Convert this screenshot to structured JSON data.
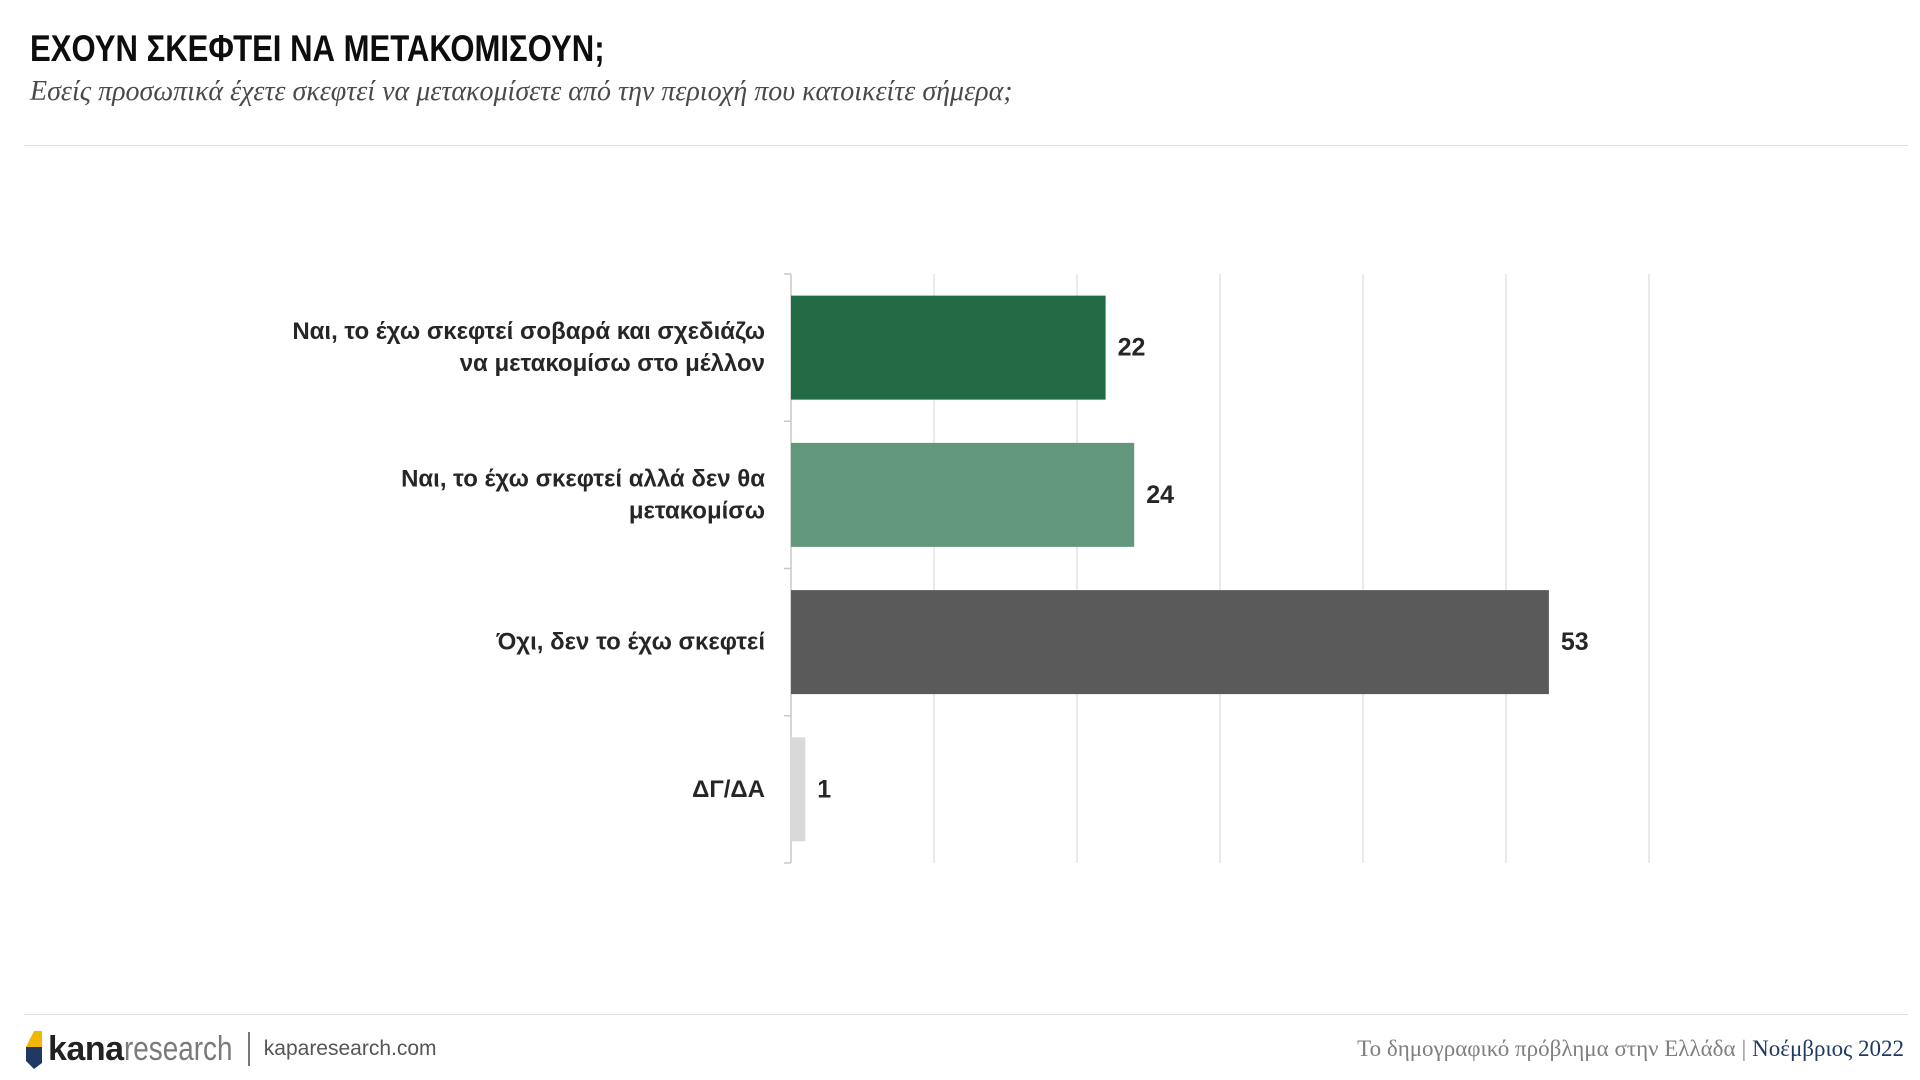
{
  "header": {
    "title": "ΕΧΟΥΝ ΣΚΕΦΤΕΙ ΝΑ ΜΕΤΑΚΟΜΙΣΟΥΝ;",
    "subtitle": "Εσείς προσωπικά έχετε σκεφτεί να μετακομίσετε από την περιοχή που κατοικείτε σήμερα;"
  },
  "chart_data": {
    "type": "bar",
    "orientation": "horizontal",
    "title": "ΕΧΟΥΝ ΣΚΕΦΤΕΙ ΝΑ ΜΕΤΑΚΟΜΙΣΟΥΝ;",
    "xlabel": "",
    "ylabel": "",
    "xlim": [
      0,
      60
    ],
    "grid": true,
    "categories": [
      [
        "Ναι, το έχω σκεφτεί σοβαρά και σχεδιάζω",
        "να μετακομίσω στο μέλλον"
      ],
      [
        "Ναι, το έχω σκεφτεί αλλά δεν θα",
        "μετακομίσω"
      ],
      [
        "Όχι, δεν το έχω σκεφτεί"
      ],
      [
        "ΔΓ/ΔΑ"
      ]
    ],
    "values": [
      22,
      24,
      53,
      1
    ],
    "colors": [
      "#226b45",
      "#63977b",
      "#5a5a5a",
      "#d9d9d9"
    ]
  },
  "footer": {
    "brand_bold": "kana",
    "brand_light": "research",
    "website": "kaparesearch.com",
    "report_title": "Το δημογραφικό πρόβλημα στην Ελλάδα",
    "separator": "|",
    "date": "Νοέμβριος 2022"
  },
  "colors": {
    "logo_blue": "#1f3864",
    "logo_yellow": "#f2b705",
    "accent_date": "#1f3864"
  }
}
